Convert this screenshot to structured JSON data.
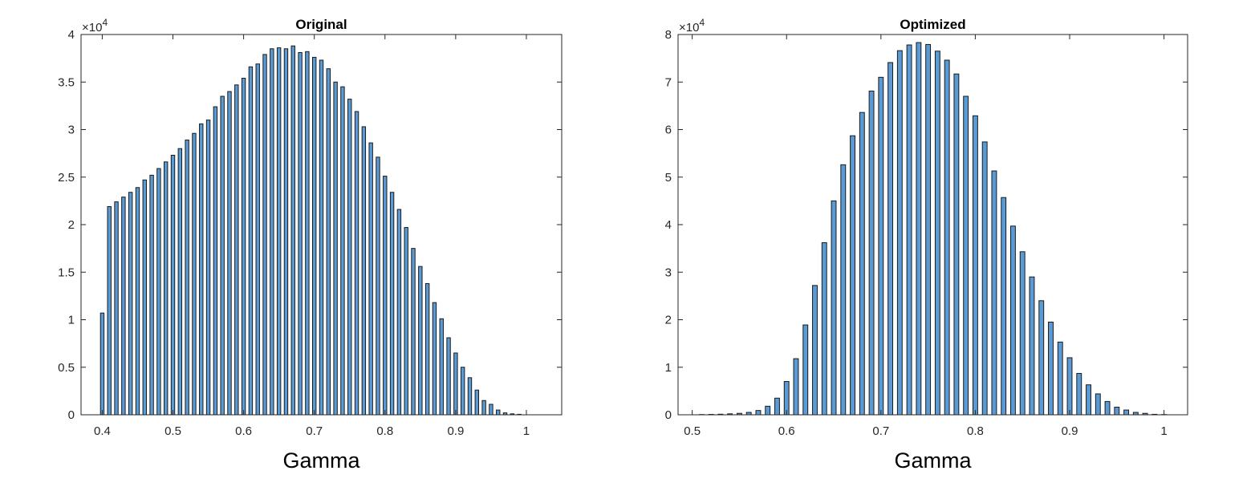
{
  "colors": {
    "bar_fill": "#5b9bd5",
    "bar_edge": "#1a1a1a",
    "axis": "#262626"
  },
  "chart_data": [
    {
      "type": "bar",
      "title": "Original",
      "xlabel": "Gamma",
      "ylabel": "",
      "y_multiplier_label": "×10",
      "y_multiplier_exponent": "4",
      "xlim": [
        0.37,
        1.05
      ],
      "ylim": [
        0,
        40000
      ],
      "xticks": [
        0.4,
        0.5,
        0.6,
        0.7,
        0.8,
        0.9,
        1
      ],
      "xtick_labels": [
        "0.4",
        "0.5",
        "0.6",
        "0.7",
        "0.8",
        "0.9",
        "1"
      ],
      "yticks": [
        0,
        5000,
        10000,
        15000,
        20000,
        25000,
        30000,
        35000,
        40000
      ],
      "ytick_labels": [
        "0",
        "0.5",
        "1",
        "1.5",
        "2",
        "2.5",
        "3",
        "3.5",
        "4"
      ],
      "bin_width": 0.01,
      "x": [
        0.4,
        0.41,
        0.42,
        0.43,
        0.44,
        0.45,
        0.46,
        0.47,
        0.48,
        0.49,
        0.5,
        0.51,
        0.52,
        0.53,
        0.54,
        0.55,
        0.56,
        0.57,
        0.58,
        0.59,
        0.6,
        0.61,
        0.62,
        0.63,
        0.64,
        0.65,
        0.66,
        0.67,
        0.68,
        0.69,
        0.7,
        0.71,
        0.72,
        0.73,
        0.74,
        0.75,
        0.76,
        0.77,
        0.78,
        0.79,
        0.8,
        0.81,
        0.82,
        0.83,
        0.84,
        0.85,
        0.86,
        0.87,
        0.88,
        0.89,
        0.9,
        0.91,
        0.92,
        0.93,
        0.94,
        0.95,
        0.96,
        0.97,
        0.98,
        0.99
      ],
      "values": [
        10700,
        21900,
        22400,
        22900,
        23400,
        23900,
        24700,
        25200,
        25900,
        26600,
        27300,
        28000,
        28900,
        29600,
        30600,
        31000,
        32400,
        33500,
        34000,
        34700,
        35400,
        36600,
        36900,
        37900,
        38500,
        38600,
        38500,
        38800,
        38100,
        38200,
        37600,
        37300,
        36400,
        35000,
        34500,
        33200,
        31900,
        30300,
        28600,
        27100,
        25100,
        23400,
        21600,
        19700,
        17500,
        15600,
        13800,
        11800,
        10100,
        8100,
        6500,
        5000,
        3900,
        2600,
        1500,
        1100,
        500,
        200,
        100,
        50
      ]
    },
    {
      "type": "bar",
      "title": "Optimized",
      "xlabel": "Gamma",
      "ylabel": "",
      "y_multiplier_label": "×10",
      "y_multiplier_exponent": "4",
      "xlim": [
        0.485,
        1.025
      ],
      "ylim": [
        0,
        80000
      ],
      "xticks": [
        0.5,
        0.6,
        0.7,
        0.8,
        0.9,
        1
      ],
      "xtick_labels": [
        "0.5",
        "0.6",
        "0.7",
        "0.8",
        "0.9",
        "1"
      ],
      "yticks": [
        0,
        10000,
        20000,
        30000,
        40000,
        50000,
        60000,
        70000,
        80000
      ],
      "ytick_labels": [
        "0",
        "1",
        "2",
        "3",
        "4",
        "5",
        "6",
        "7",
        "8"
      ],
      "bin_width": 0.01,
      "x": [
        0.51,
        0.52,
        0.53,
        0.54,
        0.55,
        0.56,
        0.57,
        0.58,
        0.59,
        0.6,
        0.61,
        0.62,
        0.63,
        0.64,
        0.65,
        0.66,
        0.67,
        0.68,
        0.69,
        0.7,
        0.71,
        0.72,
        0.73,
        0.74,
        0.75,
        0.76,
        0.77,
        0.78,
        0.79,
        0.8,
        0.81,
        0.82,
        0.83,
        0.84,
        0.85,
        0.86,
        0.87,
        0.88,
        0.89,
        0.9,
        0.91,
        0.92,
        0.93,
        0.94,
        0.95,
        0.96,
        0.97,
        0.98,
        0.99,
        1.0
      ],
      "values": [
        50,
        80,
        120,
        200,
        300,
        500,
        900,
        1800,
        3500,
        7000,
        11800,
        18900,
        27200,
        36200,
        45000,
        52600,
        58700,
        63600,
        68100,
        71000,
        74100,
        76600,
        77800,
        78300,
        77900,
        76500,
        74600,
        71700,
        67000,
        62900,
        57400,
        51300,
        45700,
        39700,
        34300,
        29000,
        24000,
        19500,
        15300,
        12000,
        8700,
        6300,
        4400,
        2800,
        1600,
        1000,
        500,
        300,
        100,
        50
      ]
    }
  ]
}
